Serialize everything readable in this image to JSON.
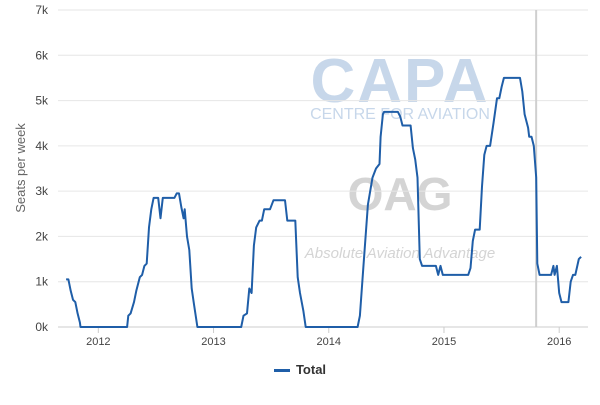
{
  "colors": {
    "series": "#1f5ea8",
    "grid": "#e6e6e6",
    "axis": "#cccccc",
    "marker": "#cfcfcf",
    "tick_text": "#444444",
    "watermark": "#c7d7ea"
  },
  "watermark": {
    "capa_logo": "CAPA",
    "capa_sub": "CENTRE FOR AVIATION",
    "oag_logo": "OAG",
    "oag_sub": "Absolute Aviation Advantage"
  },
  "chart_data": {
    "type": "line",
    "title": "",
    "xlabel": "",
    "ylabel": "Seats per week",
    "ylim": [
      0,
      7000
    ],
    "yticks": [
      0,
      1000,
      2000,
      3000,
      4000,
      5000,
      6000,
      7000
    ],
    "ytick_labels": [
      "0k",
      "1k",
      "2k",
      "3k",
      "4k",
      "5k",
      "6k",
      "7k"
    ],
    "xlim": [
      2011.65,
      2016.25
    ],
    "xticks": [
      2012,
      2013,
      2014,
      2015,
      2016
    ],
    "xtick_labels": [
      "2012",
      "2013",
      "2014",
      "2015",
      "2016"
    ],
    "vertical_marker_x": 2015.8,
    "grid": "horizontal",
    "legend_position": "bottom",
    "series": [
      {
        "name": "Total",
        "points": [
          [
            2011.72,
            1050
          ],
          [
            2011.74,
            1050
          ],
          [
            2011.76,
            800
          ],
          [
            2011.78,
            600
          ],
          [
            2011.8,
            550
          ],
          [
            2011.82,
            300
          ],
          [
            2011.84,
            100
          ],
          [
            2011.845,
            0
          ],
          [
            2012.25,
            0
          ],
          [
            2012.26,
            250
          ],
          [
            2012.28,
            300
          ],
          [
            2012.31,
            550
          ],
          [
            2012.33,
            800
          ],
          [
            2012.36,
            1100
          ],
          [
            2012.38,
            1150
          ],
          [
            2012.4,
            1350
          ],
          [
            2012.42,
            1400
          ],
          [
            2012.44,
            2200
          ],
          [
            2012.46,
            2600
          ],
          [
            2012.48,
            2850
          ],
          [
            2012.52,
            2850
          ],
          [
            2012.54,
            2400
          ],
          [
            2012.56,
            2850
          ],
          [
            2012.66,
            2850
          ],
          [
            2012.68,
            2950
          ],
          [
            2012.7,
            2950
          ],
          [
            2012.72,
            2650
          ],
          [
            2012.74,
            2400
          ],
          [
            2012.75,
            2600
          ],
          [
            2012.77,
            2000
          ],
          [
            2012.79,
            1700
          ],
          [
            2012.81,
            850
          ],
          [
            2012.83,
            500
          ],
          [
            2012.86,
            0
          ],
          [
            2013.24,
            0
          ],
          [
            2013.26,
            250
          ],
          [
            2013.29,
            300
          ],
          [
            2013.31,
            850
          ],
          [
            2013.33,
            750
          ],
          [
            2013.35,
            1800
          ],
          [
            2013.37,
            2200
          ],
          [
            2013.4,
            2350
          ],
          [
            2013.42,
            2350
          ],
          [
            2013.44,
            2600
          ],
          [
            2013.49,
            2600
          ],
          [
            2013.52,
            2800
          ],
          [
            2013.62,
            2800
          ],
          [
            2013.64,
            2350
          ],
          [
            2013.71,
            2350
          ],
          [
            2013.73,
            1100
          ],
          [
            2013.75,
            750
          ],
          [
            2013.78,
            350
          ],
          [
            2013.8,
            0
          ],
          [
            2014.25,
            0
          ],
          [
            2014.27,
            250
          ],
          [
            2014.3,
            1300
          ],
          [
            2014.34,
            2700
          ],
          [
            2014.38,
            3300
          ],
          [
            2014.41,
            3500
          ],
          [
            2014.44,
            3600
          ],
          [
            2014.45,
            4200
          ],
          [
            2014.47,
            4700
          ],
          [
            2014.48,
            4750
          ],
          [
            2014.6,
            4750
          ],
          [
            2014.62,
            4650
          ],
          [
            2014.64,
            4450
          ],
          [
            2014.71,
            4450
          ],
          [
            2014.73,
            3950
          ],
          [
            2014.75,
            3700
          ],
          [
            2014.77,
            3300
          ],
          [
            2014.79,
            1500
          ],
          [
            2014.81,
            1350
          ],
          [
            2014.93,
            1350
          ],
          [
            2014.95,
            1150
          ],
          [
            2014.97,
            1350
          ],
          [
            2014.99,
            1150
          ],
          [
            2015.21,
            1150
          ],
          [
            2015.23,
            1300
          ],
          [
            2015.25,
            1900
          ],
          [
            2015.27,
            2150
          ],
          [
            2015.31,
            2150
          ],
          [
            2015.33,
            3100
          ],
          [
            2015.35,
            3800
          ],
          [
            2015.37,
            4000
          ],
          [
            2015.4,
            4000
          ],
          [
            2015.43,
            4500
          ],
          [
            2015.46,
            5050
          ],
          [
            2015.48,
            5050
          ],
          [
            2015.5,
            5300
          ],
          [
            2015.52,
            5500
          ],
          [
            2015.66,
            5500
          ],
          [
            2015.68,
            5200
          ],
          [
            2015.7,
            4700
          ],
          [
            2015.73,
            4400
          ],
          [
            2015.74,
            4200
          ],
          [
            2015.76,
            4200
          ],
          [
            2015.78,
            4000
          ],
          [
            2015.8,
            3300
          ],
          [
            2015.81,
            1400
          ],
          [
            2015.83,
            1150
          ],
          [
            2015.93,
            1150
          ],
          [
            2015.95,
            1350
          ],
          [
            2015.96,
            1150
          ],
          [
            2015.98,
            1350
          ],
          [
            2016.0,
            750
          ],
          [
            2016.02,
            550
          ],
          [
            2016.08,
            550
          ],
          [
            2016.1,
            1000
          ],
          [
            2016.12,
            1150
          ],
          [
            2016.14,
            1150
          ],
          [
            2016.17,
            1500
          ],
          [
            2016.19,
            1550
          ]
        ]
      }
    ]
  }
}
